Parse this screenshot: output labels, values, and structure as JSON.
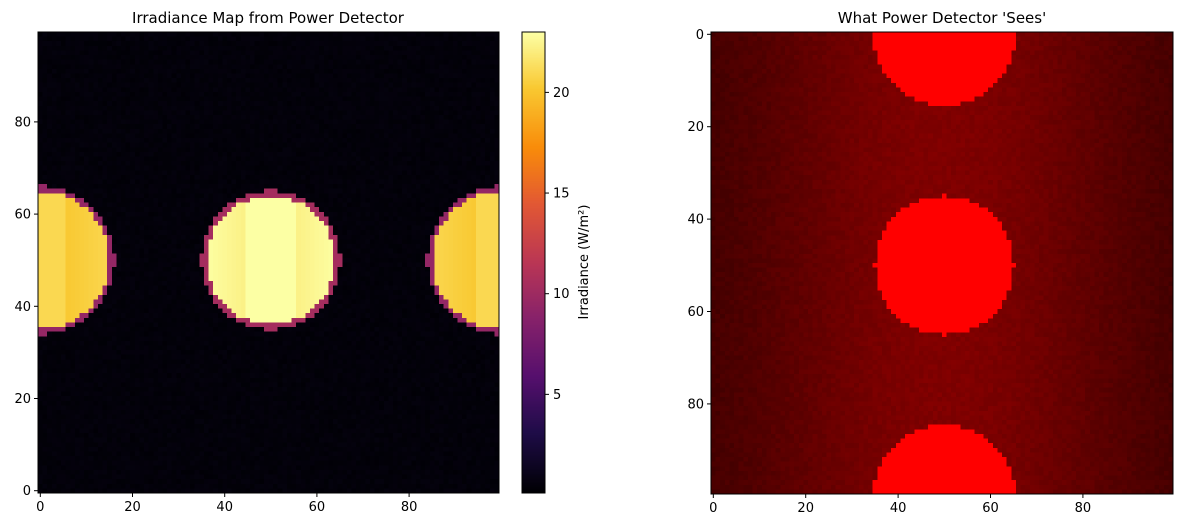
{
  "chart_data": [
    {
      "type": "heatmap",
      "title": "Irradiance Map from Power Detector",
      "xlabel": "",
      "ylabel": "",
      "xlim": [
        0,
        99
      ],
      "ylim": [
        0,
        99
      ],
      "origin": "lower",
      "x_ticks": [
        0,
        20,
        40,
        60,
        80
      ],
      "y_ticks": [
        0,
        20,
        40,
        60,
        80
      ],
      "colormap": "inferno",
      "grid": false,
      "colorbar": {
        "label": "Irradiance (W/m²)",
        "range": [
          0.1,
          23
        ],
        "ticks": [
          5,
          10,
          15,
          20
        ]
      },
      "spots": [
        {
          "center_x": 50,
          "center_y": 50,
          "radius": 14.5,
          "peak_value": 23
        },
        {
          "center_x": 0,
          "center_y": 50,
          "radius": 15.5,
          "peak_value": 21
        },
        {
          "center_x": 100,
          "center_y": 50,
          "radius": 15.5,
          "peak_value": 21
        }
      ],
      "background_value": 0.2
    },
    {
      "type": "heatmap",
      "title": "What Power Detector 'Sees'",
      "xlabel": "",
      "ylabel": "",
      "xlim": [
        0,
        99
      ],
      "ylim": [
        99,
        0
      ],
      "origin": "upper",
      "x_ticks": [
        0,
        20,
        40,
        60,
        80
      ],
      "y_ticks": [
        0,
        20,
        40,
        60,
        80
      ],
      "colormap": "red",
      "grid": false,
      "spot_color": "#ff0000",
      "background_color": "#550000",
      "spots": [
        {
          "center_x": 50,
          "center_y": 0,
          "radius": 15.5
        },
        {
          "center_x": 50,
          "center_y": 50,
          "radius": 15
        },
        {
          "center_x": 50,
          "center_y": 100,
          "radius": 15.5
        }
      ]
    }
  ]
}
